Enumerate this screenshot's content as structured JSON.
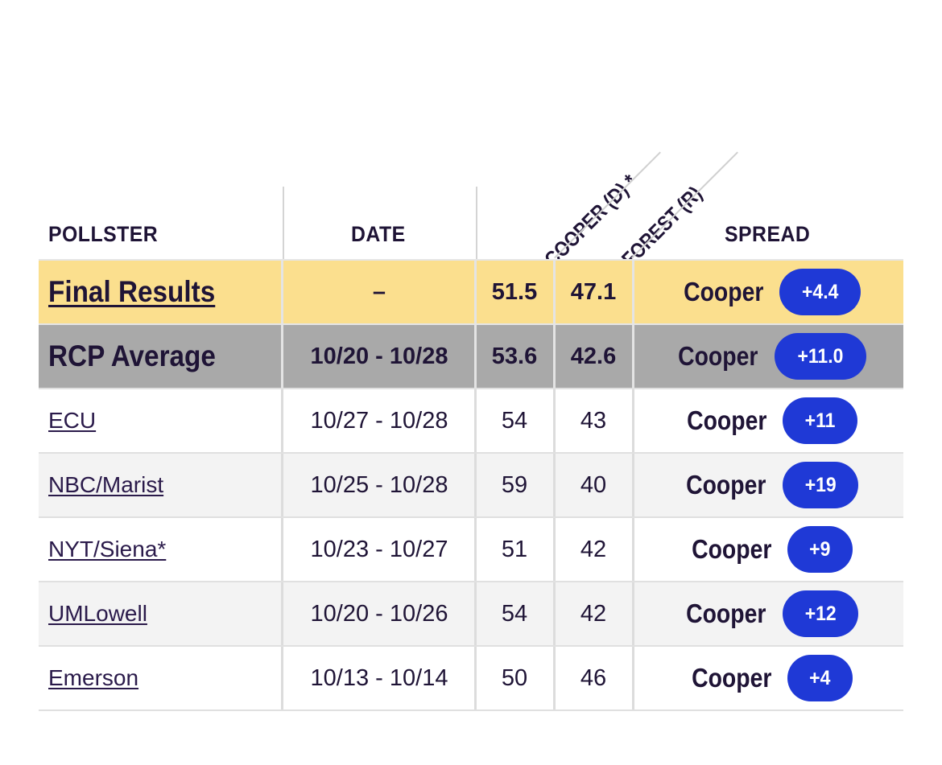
{
  "headers": {
    "pollster": "POLLSTER",
    "date": "DATE",
    "cand_d": "COOPER (D) *",
    "cand_r": "FOREST (R)",
    "spread": "SPREAD"
  },
  "summary": {
    "final": {
      "pollster": "Final Results",
      "date": "–",
      "d": "51.5",
      "r": "47.1",
      "winner": "Cooper",
      "margin": "+4.4"
    },
    "rcp": {
      "pollster": "RCP Average",
      "date": "10/20 - 10/28",
      "d": "53.6",
      "r": "42.6",
      "winner": "Cooper",
      "margin": "+11.0"
    }
  },
  "polls": [
    {
      "pollster": "ECU",
      "date": "10/27 - 10/28",
      "d": "54",
      "r": "43",
      "winner": "Cooper",
      "margin": "+11"
    },
    {
      "pollster": "NBC/Marist",
      "date": "10/25 - 10/28",
      "d": "59",
      "r": "40",
      "winner": "Cooper",
      "margin": "+19"
    },
    {
      "pollster": "NYT/Siena*",
      "date": "10/23 - 10/27",
      "d": "51",
      "r": "42",
      "winner": "Cooper",
      "margin": "+9"
    },
    {
      "pollster": "UMLowell",
      "date": "10/20 - 10/26",
      "d": "54",
      "r": "42",
      "winner": "Cooper",
      "margin": "+12"
    },
    {
      "pollster": "Emerson",
      "date": "10/13 - 10/14",
      "d": "50",
      "r": "46",
      "winner": "Cooper",
      "margin": "+4"
    }
  ],
  "colors": {
    "final_row": "#fbdf8e",
    "rcp_row": "#a9a9a9",
    "spread_pill": "#1f39d6",
    "text": "#1f1436"
  }
}
